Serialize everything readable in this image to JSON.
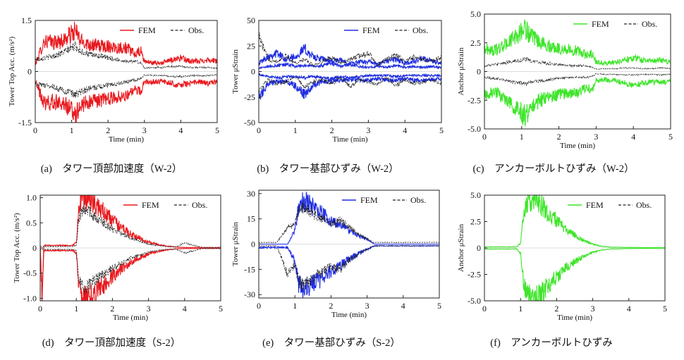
{
  "chart_data": [
    {
      "panel": "a",
      "type": "line",
      "caption": "(a)　タワー頂部加速度（W-2）",
      "xlabel": "Time (min)",
      "ylabel": "Tower Top Acc.  (m/s²)",
      "xlim": [
        0,
        5
      ],
      "ylim": [
        -1.5,
        1.5
      ],
      "xticks": [
        0,
        1,
        2,
        3,
        4,
        5
      ],
      "yticks": [
        {
          "v": 1.5,
          "t": "1.5"
        },
        {
          "v": 0,
          "t": "0"
        },
        {
          "v": -1.5,
          "t": "-1.5"
        }
      ],
      "grid": false,
      "legend": {
        "position": "top-right",
        "entries": [
          "FEM",
          "Obs."
        ]
      },
      "x": [
        0,
        0.25,
        0.5,
        0.75,
        1,
        1.1,
        1.25,
        1.5,
        1.75,
        2,
        2.25,
        2.5,
        2.75,
        2.9,
        3,
        3.25,
        3.5,
        3.75,
        4,
        4.25,
        4.5,
        4.75,
        5
      ],
      "series": [
        {
          "name": "FEM",
          "color": "#e8191e",
          "style": "solid",
          "upper": [
            0.2,
            0.9,
            0.85,
            0.9,
            1.1,
            1.2,
            0.9,
            0.8,
            0.75,
            0.75,
            0.7,
            0.7,
            0.5,
            0.6,
            0.3,
            0.25,
            0.25,
            0.35,
            0.4,
            0.3,
            0.3,
            0.35,
            0.3
          ],
          "lower": [
            -0.3,
            -0.95,
            -0.9,
            -0.9,
            -1.15,
            -1.25,
            -1.0,
            -0.9,
            -0.85,
            -0.8,
            -0.75,
            -0.7,
            -0.55,
            -0.6,
            -0.3,
            -0.3,
            -0.3,
            -0.35,
            -0.4,
            -0.35,
            -0.3,
            -0.35,
            -0.3
          ]
        },
        {
          "name": "Obs.",
          "color": "#222222",
          "style": "dashed",
          "upper": [
            0.35,
            0.4,
            0.45,
            0.55,
            0.7,
            0.75,
            0.6,
            0.5,
            0.45,
            0.4,
            0.35,
            0.3,
            0.3,
            0.25,
            0.1,
            0.12,
            0.12,
            0.15,
            0.15,
            0.12,
            0.12,
            0.12,
            0.1
          ],
          "lower": [
            -0.35,
            -0.4,
            -0.45,
            -0.55,
            -0.65,
            -0.7,
            -0.6,
            -0.5,
            -0.45,
            -0.4,
            -0.35,
            -0.3,
            -0.25,
            -0.2,
            -0.1,
            -0.12,
            -0.12,
            -0.15,
            -0.15,
            -0.12,
            -0.12,
            -0.12,
            -0.1
          ]
        }
      ]
    },
    {
      "panel": "b",
      "type": "line",
      "caption": "(b)　タワー基部ひずみ（W-2）",
      "xlabel": "Time (min)",
      "ylabel": "Tower μStrain",
      "xlim": [
        0,
        5
      ],
      "ylim": [
        -50,
        50
      ],
      "xticks": [
        0,
        1,
        2,
        3,
        4,
        5
      ],
      "yticks": [
        {
          "v": 50,
          "t": "50"
        },
        {
          "v": 25,
          "t": "25"
        },
        {
          "v": 0,
          "t": "0"
        },
        {
          "v": -25,
          "t": "-25"
        },
        {
          "v": -50,
          "t": "-50"
        }
      ],
      "grid": false,
      "legend": {
        "position": "top-right",
        "entries": [
          "FEM",
          "Obs."
        ]
      },
      "x": [
        0,
        0.25,
        0.5,
        0.75,
        1,
        1.25,
        1.5,
        1.75,
        2,
        2.25,
        2.5,
        2.75,
        3,
        3.25,
        3.5,
        3.75,
        4,
        4.25,
        4.5,
        4.75,
        5
      ],
      "series": [
        {
          "name": "FEM",
          "color": "#1f2de0",
          "style": "solid",
          "upper": [
            8,
            15,
            18,
            12,
            15,
            22,
            14,
            12,
            10,
            11,
            8,
            9,
            10,
            7,
            10,
            12,
            8,
            10,
            12,
            10,
            8
          ],
          "lower": [
            -25,
            -12,
            -10,
            -10,
            -14,
            -22,
            -13,
            -10,
            -9,
            -9,
            -8,
            -8,
            -9,
            -7,
            -8,
            -9,
            -7,
            -9,
            -9,
            -8,
            -7
          ],
          "inner_upper": [
            3,
            5,
            6,
            7,
            5,
            6,
            5,
            6,
            8,
            5,
            7,
            5,
            4,
            5,
            4,
            6,
            4,
            5,
            4,
            5,
            4
          ],
          "inner_lower": [
            -3,
            -5,
            -6,
            -5,
            -5,
            -6,
            -5,
            -6,
            -7,
            -5,
            -6,
            -5,
            -4,
            -4,
            -4,
            -5,
            -4,
            -4,
            -4,
            -4,
            -4
          ]
        },
        {
          "name": "Obs.",
          "color": "#222222",
          "style": "dashed",
          "upper": [
            35,
            12,
            10,
            15,
            8,
            12,
            6,
            10,
            14,
            8,
            12,
            15,
            18,
            6,
            12,
            16,
            10,
            14,
            12,
            10,
            14
          ],
          "lower": [
            -20,
            -8,
            -12,
            -10,
            -5,
            -15,
            -10,
            -8,
            -12,
            -6,
            -15,
            -8,
            -10,
            -12,
            -6,
            -14,
            -8,
            -12,
            -10,
            -8,
            -12
          ]
        }
      ]
    },
    {
      "panel": "c",
      "type": "line",
      "caption": "(c)　アンカーボルトひずみ（W-2）",
      "xlabel": "Time (min)",
      "ylabel": "Anchor  μStrain",
      "xlim": [
        0,
        5
      ],
      "ylim": [
        -5,
        5
      ],
      "xticks": [
        0,
        1,
        2,
        3,
        4,
        5
      ],
      "yticks": [
        {
          "v": 5,
          "t": "5.0"
        },
        {
          "v": 2.5,
          "t": "2.5"
        },
        {
          "v": 0,
          "t": "0"
        },
        {
          "v": -2.5,
          "t": "-2.5"
        },
        {
          "v": -5,
          "t": "-5.0"
        }
      ],
      "grid": false,
      "legend": {
        "position": "top-right",
        "entries": [
          "FEM",
          "Obs."
        ]
      },
      "x": [
        0,
        0.25,
        0.5,
        0.75,
        1,
        1.1,
        1.25,
        1.5,
        1.75,
        2,
        2.25,
        2.5,
        2.75,
        2.9,
        3,
        3.25,
        3.5,
        3.75,
        4,
        4.25,
        4.5,
        4.75,
        5
      ],
      "series": [
        {
          "name": "FEM",
          "color": "#3ee52a",
          "style": "solid",
          "upper": [
            2.0,
            1.8,
            2.2,
            2.8,
            3.5,
            3.8,
            3.0,
            2.5,
            2.2,
            2.0,
            1.9,
            1.8,
            1.4,
            1.6,
            0.8,
            0.7,
            0.8,
            1.0,
            1.2,
            1.0,
            0.9,
            1.0,
            0.8
          ],
          "lower": [
            -2.0,
            -1.8,
            -2.2,
            -2.8,
            -3.6,
            -4.0,
            -3.0,
            -2.5,
            -2.2,
            -2.0,
            -1.9,
            -1.8,
            -1.4,
            -1.6,
            -0.8,
            -0.7,
            -0.8,
            -1.0,
            -1.2,
            -1.0,
            -0.9,
            -1.0,
            -0.8
          ]
        },
        {
          "name": "Obs.",
          "color": "#222222",
          "style": "dashed",
          "upper": [
            0.5,
            0.6,
            0.7,
            0.9,
            1.0,
            1.1,
            0.9,
            0.8,
            0.7,
            0.6,
            0.5,
            0.5,
            0.5,
            0.4,
            0.2,
            0.25,
            0.25,
            0.3,
            0.3,
            0.25,
            0.25,
            0.3,
            0.25
          ],
          "lower": [
            -0.5,
            -0.6,
            -0.7,
            -0.9,
            -1.0,
            -1.1,
            -0.9,
            -0.8,
            -0.7,
            -0.6,
            -0.5,
            -0.5,
            -0.5,
            -0.4,
            -0.2,
            -0.25,
            -0.25,
            -0.3,
            -0.3,
            -0.25,
            -0.25,
            -0.3,
            -0.25
          ]
        }
      ]
    },
    {
      "panel": "d",
      "type": "line",
      "caption": "(d)　タワー頂部加速度（S-2）",
      "xlabel": "Time (min)",
      "ylabel": "Tower Top Acc.  (m/s²)",
      "xlim": [
        0,
        5
      ],
      "ylim": [
        -1.05,
        1.05
      ],
      "xticks": [
        0,
        1,
        2,
        3,
        4,
        5
      ],
      "yticks": [
        {
          "v": 1.0,
          "t": "1.0"
        },
        {
          "v": 0.5,
          "t": "0.5"
        },
        {
          "v": 0,
          "t": "0"
        },
        {
          "v": -0.5,
          "t": "-0.5"
        },
        {
          "v": -1.0,
          "t": "-1.0"
        }
      ],
      "grid": false,
      "legend": {
        "position": "top-right",
        "entries": [
          "FEM",
          "Obs."
        ]
      },
      "x": [
        0,
        0.05,
        0.1,
        0.5,
        0.9,
        1,
        1.05,
        1.1,
        1.2,
        1.3,
        1.5,
        1.75,
        2,
        2.25,
        2.5,
        2.75,
        3,
        3.25,
        3.5,
        3.75,
        4,
        4.5,
        5
      ],
      "series": [
        {
          "name": "FEM",
          "color": "#e8191e",
          "style": "solid",
          "upper": [
            0.05,
            -1.0,
            0.05,
            0.05,
            0.05,
            0.1,
            0.6,
            0.9,
            1.0,
            1.0,
            0.88,
            0.72,
            0.55,
            0.4,
            0.28,
            0.2,
            0.12,
            0.07,
            0.04,
            0.02,
            0.01,
            0.01,
            0.01
          ],
          "lower": [
            -0.05,
            -1.0,
            -0.05,
            -0.05,
            -0.05,
            -0.1,
            -0.6,
            -0.9,
            -1.0,
            -1.02,
            -0.9,
            -0.74,
            -0.56,
            -0.42,
            -0.3,
            -0.2,
            -0.12,
            -0.07,
            -0.04,
            -0.02,
            -0.01,
            -0.01,
            -0.01
          ]
        },
        {
          "name": "Obs.",
          "color": "#222222",
          "style": "dashed",
          "upper": [
            0.03,
            0.03,
            0.03,
            0.03,
            0.03,
            0.05,
            0.45,
            0.65,
            0.78,
            0.77,
            0.62,
            0.5,
            0.38,
            0.3,
            0.2,
            0.14,
            0.08,
            0.05,
            0.03,
            0.02,
            0.1,
            0.01,
            0.01
          ],
          "lower": [
            -0.03,
            -0.03,
            -0.03,
            -0.03,
            -0.03,
            -0.05,
            -0.5,
            -0.68,
            -0.8,
            -0.78,
            -0.64,
            -0.52,
            -0.4,
            -0.3,
            -0.2,
            -0.14,
            -0.08,
            -0.05,
            -0.03,
            -0.02,
            -0.1,
            -0.01,
            -0.01
          ]
        }
      ]
    },
    {
      "panel": "e",
      "type": "line",
      "caption": "(e)　タワー基部ひずみ（S-2）",
      "xlabel": "Time (min)",
      "ylabel": "Tower μStrain",
      "xlim": [
        0,
        5
      ],
      "ylim": [
        -32,
        32
      ],
      "xticks": [
        0,
        1,
        2,
        3,
        4,
        5
      ],
      "yticks": [
        {
          "v": 30,
          "t": "30"
        },
        {
          "v": 15,
          "t": "15"
        },
        {
          "v": 0,
          "t": "0"
        },
        {
          "v": -15,
          "t": "-15"
        },
        {
          "v": -30,
          "t": "-30"
        }
      ],
      "grid": false,
      "legend": {
        "position": "top-right",
        "entries": [
          "FEM",
          "Obs."
        ]
      },
      "x": [
        0,
        0.5,
        0.8,
        1,
        1.1,
        1.25,
        1.5,
        1.75,
        2,
        2.25,
        2.5,
        2.75,
        3,
        3.2,
        3.5,
        4,
        4.5,
        5
      ],
      "series": [
        {
          "name": "FEM",
          "color": "#1f2de0",
          "style": "solid",
          "upper": [
            0,
            0,
            0,
            8,
            22,
            26,
            22,
            18,
            14,
            12,
            8,
            5,
            3,
            0,
            0,
            0,
            0,
            0
          ],
          "lower": [
            -2,
            -2,
            -2,
            -10,
            -24,
            -28,
            -24,
            -20,
            -16,
            -13,
            -9,
            -6,
            -3,
            -1,
            -1,
            -1,
            -1,
            -1
          ]
        },
        {
          "name": "Obs.",
          "color": "#222222",
          "style": "dashed",
          "upper": [
            1,
            1,
            10,
            12,
            20,
            22,
            18,
            15,
            12,
            14,
            10,
            6,
            3,
            1,
            1,
            1,
            1,
            1
          ],
          "lower": [
            -1,
            -1,
            -18,
            -12,
            -22,
            -24,
            -20,
            -16,
            -13,
            -15,
            -10,
            -6,
            -3,
            -1,
            -1,
            -1,
            -1,
            -1
          ]
        }
      ]
    },
    {
      "panel": "f",
      "type": "line",
      "caption": "(f)　アンカーボルトひずみ",
      "xlabel": "Time (min)",
      "ylabel": "Anchor  μStrain",
      "xlim": [
        0,
        5
      ],
      "ylim": [
        -5,
        5
      ],
      "xticks": [
        0,
        1,
        2,
        3,
        4,
        5
      ],
      "yticks": [
        {
          "v": 5,
          "t": "5.0"
        },
        {
          "v": 2.5,
          "t": "2.5"
        },
        {
          "v": 0,
          "t": "0"
        },
        {
          "v": -2.5,
          "t": "-2.5"
        },
        {
          "v": -5,
          "t": "-5.0"
        }
      ],
      "grid": false,
      "legend": {
        "position": "top-right",
        "entries": [
          "FEM",
          "Obs."
        ]
      },
      "x": [
        0,
        0.5,
        0.9,
        1,
        1.1,
        1.25,
        1.4,
        1.6,
        1.8,
        2,
        2.25,
        2.5,
        2.75,
        3,
        3.25,
        3.5,
        4,
        4.5,
        5
      ],
      "series": [
        {
          "name": "FEM",
          "color": "#3ee52a",
          "style": "solid",
          "upper": [
            0.1,
            0.1,
            0.1,
            0.5,
            3.5,
            4.5,
            4.8,
            4.0,
            3.2,
            2.6,
            1.8,
            1.2,
            0.7,
            0.35,
            0.15,
            0.08,
            0.05,
            0.04,
            0.03
          ],
          "lower": [
            -0.1,
            -0.1,
            -0.1,
            -0.5,
            -3.8,
            -4.6,
            -4.9,
            -4.2,
            -3.4,
            -2.7,
            -1.9,
            -1.3,
            -0.8,
            -0.4,
            -0.18,
            -0.1,
            -0.05,
            -0.04,
            -0.03
          ]
        }
      ]
    }
  ]
}
